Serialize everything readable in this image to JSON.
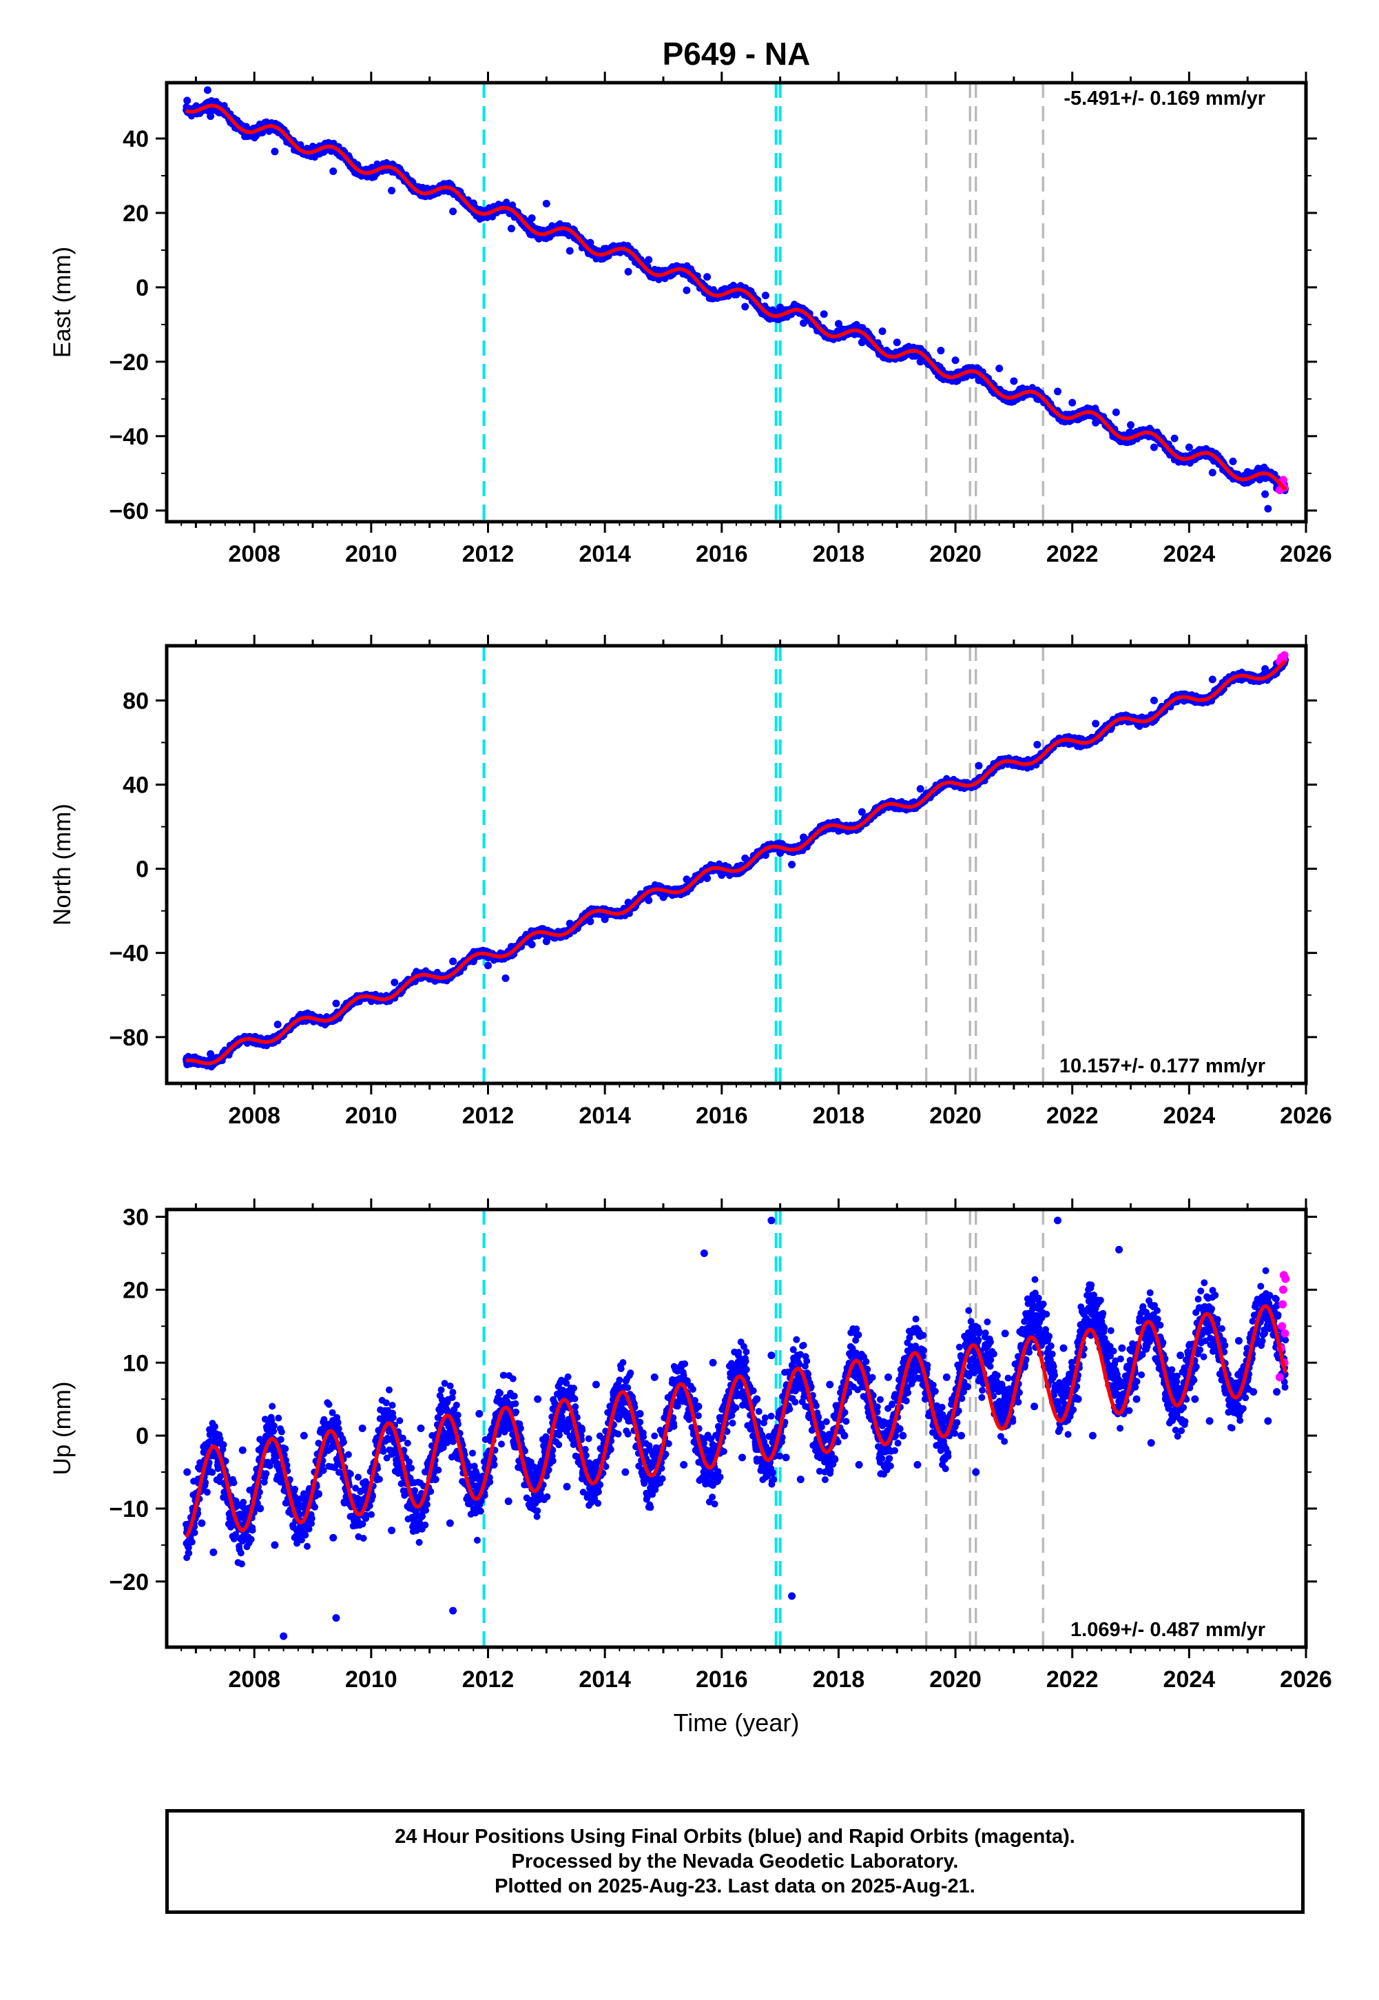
{
  "chart_data": {
    "type": "scatter",
    "title": "P649 - NA",
    "xlabel": "Time (year)",
    "xlim": [
      2006.5,
      2026.0
    ],
    "x_ticks": [
      2008,
      2010,
      2012,
      2014,
      2016,
      2018,
      2020,
      2022,
      2024,
      2026
    ],
    "x_tick_labels": [
      "2008",
      "2010",
      "2012",
      "2014",
      "2016",
      "2018",
      "2020",
      "2022",
      "2024",
      "2026"
    ],
    "series_colors": {
      "final_orbits": "#0000ff",
      "rapid_orbits": "#ff00ff",
      "model": "#ff0000"
    },
    "event_lines": {
      "cyan": {
        "color": "#00e5ee",
        "x": [
          2011.93,
          2016.93,
          2017.0
        ]
      },
      "gray": {
        "color": "#bbbbbb",
        "x": [
          2019.5,
          2020.25,
          2020.35,
          2021.5
        ]
      }
    },
    "panels": [
      {
        "ylabel": "East (mm)",
        "ylim": [
          -63,
          55
        ],
        "y_ticks": [
          40,
          20,
          0,
          -20,
          -40,
          -60
        ],
        "y_tick_labels": [
          "40",
          "20",
          "0",
          "−20",
          "−40",
          "−60"
        ],
        "rate_label": "-5.491+/- 0.169 mm/yr",
        "rate_position": "top-right",
        "start": 49.5,
        "rate": -5.491,
        "season_amp": 2.0,
        "season_phase": 0.1,
        "noise": 1.1,
        "final_points": [
          {
            "x": 2006.85,
            "y": 50.2
          },
          {
            "x": 2007.25,
            "y": 46.0
          },
          {
            "x": 2007.7,
            "y": 44.5
          },
          {
            "x": 2008.0,
            "y": 42.0
          },
          {
            "x": 2008.35,
            "y": 36.5
          },
          {
            "x": 2008.7,
            "y": 38.6
          },
          {
            "x": 2009.0,
            "y": 35.6
          },
          {
            "x": 2009.35,
            "y": 31.2
          },
          {
            "x": 2009.7,
            "y": 33.6
          },
          {
            "x": 2010.0,
            "y": 30.5
          },
          {
            "x": 2010.35,
            "y": 26.0
          },
          {
            "x": 2010.7,
            "y": 28.0
          },
          {
            "x": 2011.0,
            "y": 24.6
          },
          {
            "x": 2011.4,
            "y": 20.4
          },
          {
            "x": 2011.75,
            "y": 22.6
          },
          {
            "x": 2012.0,
            "y": 20.2
          },
          {
            "x": 2012.4,
            "y": 15.8
          },
          {
            "x": 2012.75,
            "y": 18.6
          },
          {
            "x": 2013.0,
            "y": 14.6
          },
          {
            "x": 2013.4,
            "y": 9.8
          },
          {
            "x": 2013.75,
            "y": 12.0
          },
          {
            "x": 2014.0,
            "y": 8.6
          },
          {
            "x": 2014.4,
            "y": 4.2
          },
          {
            "x": 2014.75,
            "y": 7.4
          },
          {
            "x": 2015.0,
            "y": 3.6
          },
          {
            "x": 2015.4,
            "y": -0.8
          },
          {
            "x": 2015.75,
            "y": 2.8
          },
          {
            "x": 2016.0,
            "y": -0.8
          },
          {
            "x": 2016.4,
            "y": -5.2
          },
          {
            "x": 2016.75,
            "y": -2.2
          },
          {
            "x": 2017.0,
            "y": -5.4
          },
          {
            "x": 2017.4,
            "y": -9.6
          },
          {
            "x": 2017.75,
            "y": -7.2
          },
          {
            "x": 2018.0,
            "y": -9.8
          },
          {
            "x": 2018.4,
            "y": -14.8
          },
          {
            "x": 2018.75,
            "y": -11.8
          },
          {
            "x": 2019.0,
            "y": -14.8
          },
          {
            "x": 2019.4,
            "y": -20.0
          },
          {
            "x": 2019.75,
            "y": -17.0
          },
          {
            "x": 2020.0,
            "y": -19.6
          },
          {
            "x": 2020.4,
            "y": -25.0
          },
          {
            "x": 2020.75,
            "y": -21.8
          },
          {
            "x": 2021.0,
            "y": -25.2
          },
          {
            "x": 2021.4,
            "y": -30.0
          },
          {
            "x": 2021.75,
            "y": -28.0
          },
          {
            "x": 2022.0,
            "y": -31.0
          },
          {
            "x": 2022.4,
            "y": -36.4
          },
          {
            "x": 2022.75,
            "y": -33.6
          },
          {
            "x": 2023.0,
            "y": -37.0
          },
          {
            "x": 2023.4,
            "y": -43.0
          },
          {
            "x": 2023.75,
            "y": -40.6
          },
          {
            "x": 2024.0,
            "y": -43.0
          },
          {
            "x": 2024.4,
            "y": -49.8
          },
          {
            "x": 2024.75,
            "y": -46.8
          },
          {
            "x": 2025.0,
            "y": -49.6
          },
          {
            "x": 2025.3,
            "y": -55.6
          },
          {
            "x": 2025.5,
            "y": -54.0
          },
          {
            "x": 2013.0,
            "y": 22.5
          },
          {
            "x": 2007.2,
            "y": 53.0
          },
          {
            "x": 2025.35,
            "y": -59.5
          }
        ],
        "rapid_points": [
          {
            "x": 2025.55,
            "y": -54.5
          },
          {
            "x": 2025.58,
            "y": -52.5
          },
          {
            "x": 2025.61,
            "y": -51.8
          },
          {
            "x": 2025.63,
            "y": -53.8
          }
        ]
      },
      {
        "ylabel": "North (mm)",
        "ylim": [
          -102,
          106
        ],
        "y_ticks": [
          80,
          40,
          0,
          -40,
          -80
        ],
        "y_tick_labels": [
          "80",
          "40",
          "0",
          "−40",
          "−80"
        ],
        "rate_label": "10.157+/- 0.177 mm/yr",
        "rate_position": "bottom-right",
        "start": -94.0,
        "rate": 10.157,
        "season_amp": 2.8,
        "season_phase": 0.55,
        "noise": 1.5,
        "final_points": [
          {
            "x": 2006.85,
            "y": -93.0
          },
          {
            "x": 2007.25,
            "y": -88.0
          },
          {
            "x": 2007.7,
            "y": -83.0
          },
          {
            "x": 2008.0,
            "y": -81.0
          },
          {
            "x": 2008.4,
            "y": -74.0
          },
          {
            "x": 2008.75,
            "y": -72.5
          },
          {
            "x": 2009.0,
            "y": -71.0
          },
          {
            "x": 2009.4,
            "y": -64.0
          },
          {
            "x": 2009.75,
            "y": -62.5
          },
          {
            "x": 2010.0,
            "y": -61.0
          },
          {
            "x": 2010.4,
            "y": -54.0
          },
          {
            "x": 2010.75,
            "y": -53.5
          },
          {
            "x": 2011.0,
            "y": -51.0
          },
          {
            "x": 2011.4,
            "y": -44.0
          },
          {
            "x": 2011.75,
            "y": -44.0
          },
          {
            "x": 2012.0,
            "y": -46.0
          },
          {
            "x": 2012.4,
            "y": -37.0
          },
          {
            "x": 2012.75,
            "y": -36.0
          },
          {
            "x": 2013.0,
            "y": -34.5
          },
          {
            "x": 2013.4,
            "y": -26.0
          },
          {
            "x": 2013.75,
            "y": -25.0
          },
          {
            "x": 2014.0,
            "y": -24.0
          },
          {
            "x": 2014.4,
            "y": -16.0
          },
          {
            "x": 2014.75,
            "y": -15.0
          },
          {
            "x": 2015.0,
            "y": -13.5
          },
          {
            "x": 2015.4,
            "y": -5.0
          },
          {
            "x": 2015.75,
            "y": -4.5
          },
          {
            "x": 2016.0,
            "y": -3.0
          },
          {
            "x": 2016.4,
            "y": 5.0
          },
          {
            "x": 2016.75,
            "y": 6.5
          },
          {
            "x": 2017.0,
            "y": 7.5
          },
          {
            "x": 2017.4,
            "y": 15.0
          },
          {
            "x": 2017.75,
            "y": 18.0
          },
          {
            "x": 2018.0,
            "y": 18.0
          },
          {
            "x": 2018.4,
            "y": 27.0
          },
          {
            "x": 2018.75,
            "y": 28.0
          },
          {
            "x": 2019.0,
            "y": 29.0
          },
          {
            "x": 2019.4,
            "y": 38.0
          },
          {
            "x": 2019.75,
            "y": 38.5
          },
          {
            "x": 2020.0,
            "y": 40.0
          },
          {
            "x": 2020.4,
            "y": 49.0
          },
          {
            "x": 2020.75,
            "y": 50.0
          },
          {
            "x": 2021.0,
            "y": 51.0
          },
          {
            "x": 2021.4,
            "y": 59.0
          },
          {
            "x": 2021.75,
            "y": 60.5
          },
          {
            "x": 2022.0,
            "y": 61.0
          },
          {
            "x": 2022.4,
            "y": 69.0
          },
          {
            "x": 2022.75,
            "y": 71.0
          },
          {
            "x": 2023.0,
            "y": 72.0
          },
          {
            "x": 2023.4,
            "y": 80.0
          },
          {
            "x": 2023.75,
            "y": 80.5
          },
          {
            "x": 2024.0,
            "y": 82.0
          },
          {
            "x": 2024.4,
            "y": 90.0
          },
          {
            "x": 2024.75,
            "y": 89.5
          },
          {
            "x": 2025.0,
            "y": 91.0
          },
          {
            "x": 2025.3,
            "y": 95.0
          },
          {
            "x": 2025.5,
            "y": 97.5
          },
          {
            "x": 2012.3,
            "y": -52.0
          },
          {
            "x": 2017.2,
            "y": 2.0
          }
        ],
        "rapid_points": [
          {
            "x": 2025.55,
            "y": 98.5
          },
          {
            "x": 2025.58,
            "y": 100.5
          },
          {
            "x": 2025.61,
            "y": 99.5
          },
          {
            "x": 2025.63,
            "y": 101.5
          }
        ]
      },
      {
        "ylabel": "Up (mm)",
        "ylim": [
          -29,
          31
        ],
        "y_ticks": [
          30,
          20,
          10,
          0,
          -10,
          -20
        ],
        "y_tick_labels": [
          "30",
          "20",
          "10",
          "0",
          "−10",
          "−20"
        ],
        "rate_label": "1.069+/- 0.487 mm/yr",
        "rate_position": "bottom-right",
        "start": -8.0,
        "rate": 1.069,
        "season_amp": 6.0,
        "season_phase": 0.05,
        "noise": 3.6,
        "final_points": [
          {
            "x": 2006.85,
            "y": -5.0
          },
          {
            "x": 2007.1,
            "y": -12.0
          },
          {
            "x": 2007.3,
            "y": -16.0
          },
          {
            "x": 2007.55,
            "y": -8.0
          },
          {
            "x": 2007.8,
            "y": -2.0
          },
          {
            "x": 2008.1,
            "y": -10.0
          },
          {
            "x": 2008.35,
            "y": -15.0
          },
          {
            "x": 2008.6,
            "y": -8.0
          },
          {
            "x": 2008.85,
            "y": 0.0
          },
          {
            "x": 2009.1,
            "y": -8.0
          },
          {
            "x": 2009.35,
            "y": -14.0
          },
          {
            "x": 2009.6,
            "y": -6.0
          },
          {
            "x": 2009.85,
            "y": 1.0
          },
          {
            "x": 2010.1,
            "y": -6.0
          },
          {
            "x": 2010.35,
            "y": -13.0
          },
          {
            "x": 2010.6,
            "y": -5.0
          },
          {
            "x": 2010.85,
            "y": 1.0
          },
          {
            "x": 2011.1,
            "y": -6.0
          },
          {
            "x": 2011.35,
            "y": -12.0
          },
          {
            "x": 2011.6,
            "y": -4.0
          },
          {
            "x": 2011.85,
            "y": 3.0
          },
          {
            "x": 2012.1,
            "y": -4.0
          },
          {
            "x": 2012.35,
            "y": -9.0
          },
          {
            "x": 2012.6,
            "y": -2.0
          },
          {
            "x": 2012.85,
            "y": 5.0
          },
          {
            "x": 2013.1,
            "y": -2.0
          },
          {
            "x": 2013.35,
            "y": -7.0
          },
          {
            "x": 2013.6,
            "y": 1.0
          },
          {
            "x": 2013.85,
            "y": 7.0
          },
          {
            "x": 2014.1,
            "y": 0.0
          },
          {
            "x": 2014.35,
            "y": -5.0
          },
          {
            "x": 2014.6,
            "y": 3.0
          },
          {
            "x": 2014.85,
            "y": 8.0
          },
          {
            "x": 2015.1,
            "y": 1.0
          },
          {
            "x": 2015.35,
            "y": -4.0
          },
          {
            "x": 2015.6,
            "y": 4.0
          },
          {
            "x": 2015.85,
            "y": 10.0
          },
          {
            "x": 2016.1,
            "y": 3.0
          },
          {
            "x": 2016.35,
            "y": -3.0
          },
          {
            "x": 2016.6,
            "y": 5.0
          },
          {
            "x": 2016.85,
            "y": 11.0
          },
          {
            "x": 2017.1,
            "y": -3.0
          },
          {
            "x": 2017.35,
            "y": -6.0
          },
          {
            "x": 2017.6,
            "y": 2.0
          },
          {
            "x": 2017.85,
            "y": 7.0
          },
          {
            "x": 2018.1,
            "y": 0.0
          },
          {
            "x": 2018.35,
            "y": -4.0
          },
          {
            "x": 2018.6,
            "y": 4.0
          },
          {
            "x": 2018.85,
            "y": 8.0
          },
          {
            "x": 2019.1,
            "y": 0.0
          },
          {
            "x": 2019.35,
            "y": -4.0
          },
          {
            "x": 2019.6,
            "y": 3.0
          },
          {
            "x": 2019.85,
            "y": 8.0
          },
          {
            "x": 2020.1,
            "y": 0.0
          },
          {
            "x": 2020.35,
            "y": -5.0
          },
          {
            "x": 2020.6,
            "y": 6.0
          },
          {
            "x": 2020.85,
            "y": 14.0
          },
          {
            "x": 2021.1,
            "y": 10.0
          },
          {
            "x": 2021.35,
            "y": 4.0
          },
          {
            "x": 2021.6,
            "y": 10.0
          },
          {
            "x": 2021.85,
            "y": 12.0
          },
          {
            "x": 2022.1,
            "y": 5.0
          },
          {
            "x": 2022.35,
            "y": 0.0
          },
          {
            "x": 2022.6,
            "y": 8.0
          },
          {
            "x": 2022.85,
            "y": 12.0
          },
          {
            "x": 2023.1,
            "y": 5.0
          },
          {
            "x": 2023.35,
            "y": -1.0
          },
          {
            "x": 2023.6,
            "y": 5.0
          },
          {
            "x": 2023.85,
            "y": 11.0
          },
          {
            "x": 2024.1,
            "y": 5.0
          },
          {
            "x": 2024.35,
            "y": 2.0
          },
          {
            "x": 2024.6,
            "y": 8.0
          },
          {
            "x": 2024.85,
            "y": 13.0
          },
          {
            "x": 2025.1,
            "y": 6.0
          },
          {
            "x": 2025.35,
            "y": 2.0
          },
          {
            "x": 2025.5,
            "y": 6.0
          },
          {
            "x": 2016.85,
            "y": 29.5
          },
          {
            "x": 2021.75,
            "y": 29.5
          },
          {
            "x": 2008.5,
            "y": -27.5
          },
          {
            "x": 2009.4,
            "y": -25.0
          },
          {
            "x": 2017.2,
            "y": -22.0
          },
          {
            "x": 2015.7,
            "y": 25.0
          },
          {
            "x": 2022.8,
            "y": 25.5
          },
          {
            "x": 2011.4,
            "y": -24.0
          }
        ],
        "rapid_points": [
          {
            "x": 2025.55,
            "y": 8.0
          },
          {
            "x": 2025.57,
            "y": 12.0
          },
          {
            "x": 2025.59,
            "y": 15.0
          },
          {
            "x": 2025.6,
            "y": 18.0
          },
          {
            "x": 2025.61,
            "y": 20.0
          },
          {
            "x": 2025.62,
            "y": 22.0
          },
          {
            "x": 2025.63,
            "y": 10.0
          },
          {
            "x": 2025.64,
            "y": 14.0
          },
          {
            "x": 2025.65,
            "y": 21.5
          }
        ]
      }
    ]
  },
  "footer": {
    "line1": "24 Hour Positions Using Final Orbits (blue) and Rapid Orbits (magenta).",
    "line2": "Processed by the Nevada Geodetic Laboratory.",
    "line3": "Plotted on 2025-Aug-23. Last data on 2025-Aug-21."
  }
}
